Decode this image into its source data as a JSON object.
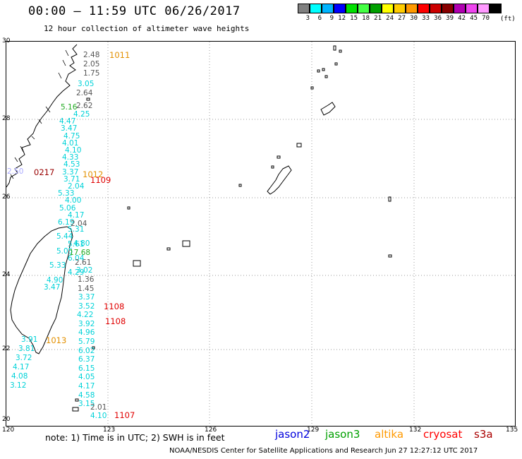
{
  "header": {
    "title": "00:00 – 11:59 UTC 06/26/2017",
    "subtitle": "12 hour collection of altimeter wave heights"
  },
  "legend": {
    "colors": [
      "#808080",
      "#00ffff",
      "#00b4ff",
      "#0000ff",
      "#00e000",
      "#44ff44",
      "#00a000",
      "#ffff00",
      "#ffcc00",
      "#ff9900",
      "#ff0000",
      "#cc0000",
      "#880000",
      "#b000b0",
      "#ee44ee",
      "#ff99ff",
      "#000000"
    ],
    "ticks": [
      "3",
      "6",
      "9",
      "12",
      "15",
      "18",
      "21",
      "24",
      "27",
      "30",
      "33",
      "36",
      "39",
      "42",
      "45",
      "70"
    ],
    "unit": "(ft)"
  },
  "map": {
    "lat_labels": [
      "30",
      "28",
      "26",
      "24",
      "22",
      "20"
    ],
    "lon_labels": [
      "120",
      "123",
      "126",
      "129",
      "132",
      "135"
    ]
  },
  "wave_heights": {
    "gray_a": [
      "2.48",
      "2.05",
      "1.75"
    ],
    "gray_b": [
      "2.64"
    ],
    "cyan_a": [
      "3.05"
    ],
    "green_a": [
      "5.16"
    ],
    "gray_c": [
      "2.62"
    ],
    "cyan_b": [
      "4.25",
      "4.47",
      "3.47",
      "4.75",
      "4.01",
      "4.10",
      "4.33",
      "4.53",
      "3.37",
      "3.71",
      "2.04",
      "5.33",
      "4.00",
      "5.06",
      "4.17",
      "6.19",
      "5.31",
      "5.44",
      "5.61",
      "5.05",
      "6.04",
      "5.33",
      "4.29",
      "4.90",
      "3.47"
    ],
    "gray_d": [
      "2.04"
    ],
    "lav_a": [
      "2.50"
    ],
    "cyan_c": [
      "4.80"
    ],
    "green_b": [
      "17.68"
    ],
    "gray_e": [
      "2.61"
    ],
    "cyan_d": [
      "3.02"
    ],
    "gray_f": [
      "1.36",
      "1.45"
    ],
    "cyan_e": [
      "3.37",
      "3.52",
      "4.22",
      "3.92",
      "4.96",
      "5.79",
      "6.02",
      "6.37",
      "6.15",
      "4.05",
      "4.17",
      "4.58",
      "3.15"
    ],
    "gray_g": [
      "2.01"
    ],
    "cyan_f": [
      "4.10"
    ],
    "cyan_g": [
      "3.91",
      "3.81",
      "3.72",
      "4.17",
      "4.08",
      "3.12"
    ]
  },
  "times": {
    "t1011": "1011",
    "t0217": "0217",
    "t1012": "1012",
    "t1109": "1109",
    "t1108a": "1108",
    "t1108b": "1108",
    "t1013": "1013",
    "t1107": "1107"
  },
  "note": "note: 1) Time is in UTC; 2) SWH is in feet",
  "missions": [
    "jason2",
    "jason3",
    "altika",
    "cryosat",
    "s3a"
  ],
  "footer": "NOAA/NESDIS Center for Satellite Applications and Research    Jun 27 12:27:12 UTC 2017"
}
